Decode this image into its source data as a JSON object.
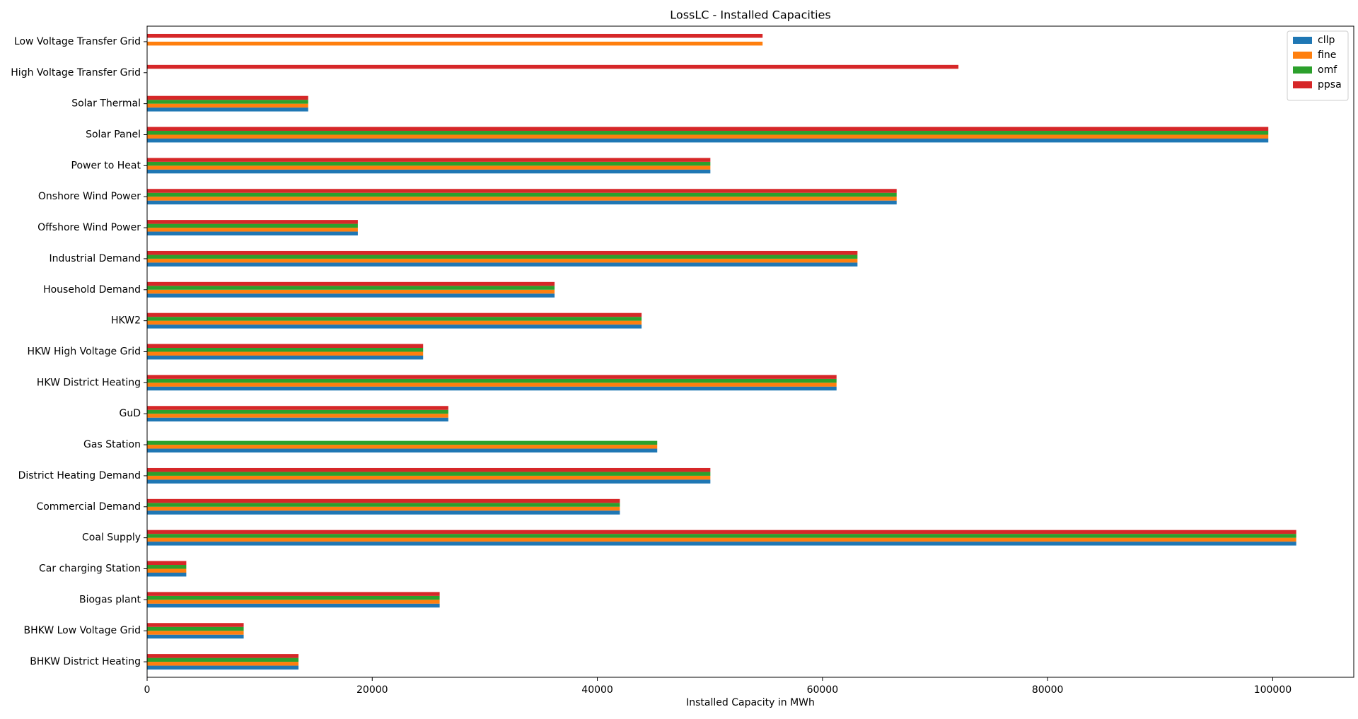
{
  "chart_data": {
    "type": "barh",
    "title": "LossLC - Installed Capacities",
    "x_label": "Installed Capacity in MWh",
    "categories": [
      "BHKW District Heating",
      "BHKW Low Voltage Grid",
      "Biogas plant",
      "Car charging Station",
      "Coal Supply",
      "Commercial Demand",
      "District Heating Demand",
      "Gas Station",
      "GuD",
      "HKW District Heating",
      "HKW High Voltage Grid",
      "HKW2",
      "Household Demand",
      "Industrial Demand",
      "Offshore Wind Power",
      "Onshore Wind Power",
      "Power to Heat",
      "Solar Panel",
      "Solar Thermal",
      "High Voltage Transfer Grid",
      "Low Voltage Transfer Grid"
    ],
    "series": [
      {
        "name": "cllp",
        "color": "#1f77b4",
        "values": [
          13450,
          8580,
          25990,
          3480,
          102090,
          42000,
          50040,
          45320,
          26760,
          61250,
          24520,
          43930,
          36200,
          63110,
          18720,
          66590,
          50040,
          99610,
          14310,
          null,
          null
        ]
      },
      {
        "name": "fine",
        "color": "#ff7f0e",
        "values": [
          13450,
          8580,
          25990,
          3480,
          102090,
          42000,
          50040,
          45320,
          26760,
          61250,
          24520,
          43930,
          36200,
          63110,
          18720,
          66590,
          50040,
          99610,
          14310,
          null,
          54680
        ]
      },
      {
        "name": "omf",
        "color": "#2ca02c",
        "values": [
          13450,
          8580,
          25990,
          3480,
          102090,
          42000,
          50040,
          45320,
          26760,
          61250,
          24520,
          43930,
          36200,
          63110,
          18720,
          66590,
          50040,
          99610,
          14310,
          null,
          null
        ]
      },
      {
        "name": "ppsa",
        "color": "#d62728",
        "values": [
          13450,
          8580,
          25990,
          3480,
          102090,
          42000,
          50040,
          null,
          26760,
          61250,
          24520,
          43930,
          36200,
          63110,
          18720,
          66590,
          50040,
          99610,
          14310,
          72080,
          54680
        ]
      }
    ],
    "xlim": [
      0,
      107200
    ],
    "xticks": [
      0,
      20000,
      40000,
      60000,
      80000,
      100000
    ],
    "legend": "upper right"
  }
}
